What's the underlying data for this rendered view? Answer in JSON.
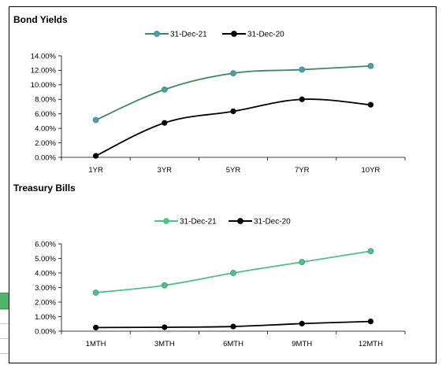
{
  "chart_data": [
    {
      "type": "line",
      "title": "Bond Yields",
      "categories": [
        "1YR",
        "3YR",
        "5YR",
        "7YR",
        "10YR"
      ],
      "series": [
        {
          "name": "31-Dec-21",
          "values": [
            5.15,
            9.35,
            11.6,
            12.1,
            12.6
          ],
          "color": "#4a9ea6",
          "line_color": "#3b8a5c"
        },
        {
          "name": "31-Dec-20",
          "values": [
            0.2,
            4.75,
            6.35,
            8.0,
            7.25
          ],
          "color": "#000000",
          "line_color": "#000000"
        }
      ],
      "yticks": [
        "0.00%",
        "2.00%",
        "4.00%",
        "6.00%",
        "8.00%",
        "10.00%",
        "12.00%",
        "14.00%"
      ],
      "ylim": [
        0,
        14
      ],
      "legend": "top-center",
      "grid": false
    },
    {
      "type": "line",
      "title": "Treasury  Bills",
      "categories": [
        "1MTH",
        "3MTH",
        "6MTH",
        "9MTH",
        "12MTH"
      ],
      "series": [
        {
          "name": "31-Dec-21",
          "values": [
            2.65,
            3.15,
            4.0,
            4.75,
            5.5
          ],
          "color": "#4cc283",
          "line_color": "#4cc283"
        },
        {
          "name": "31-Dec-20",
          "values": [
            0.25,
            0.27,
            0.32,
            0.52,
            0.67
          ],
          "color": "#000000",
          "line_color": "#000000"
        }
      ],
      "yticks": [
        "0.00%",
        "1.00%",
        "2.00%",
        "3.00%",
        "4.00%",
        "5.00%",
        "6.00%"
      ],
      "ylim": [
        0,
        6
      ],
      "legend": "top-center",
      "grid": false
    }
  ]
}
